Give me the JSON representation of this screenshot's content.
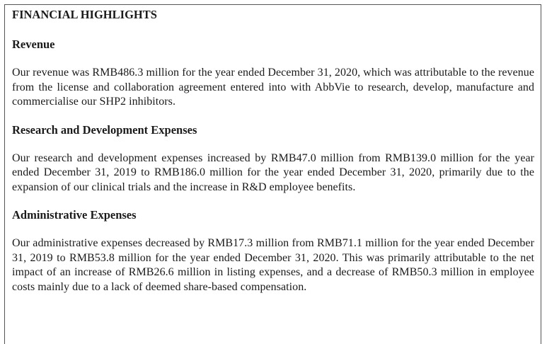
{
  "document": {
    "title": "FINANCIAL HIGHLIGHTS",
    "sections": [
      {
        "heading": "Revenue",
        "body": "Our revenue was RMB486.3 million for the year ended December 31, 2020, which was attributable to the revenue from the license and collaboration agreement entered into with AbbVie to research, develop, manufacture and commercialise our SHP2 inhibitors."
      },
      {
        "heading": "Research and Development Expenses",
        "body": "Our research and development expenses increased by RMB47.0 million from RMB139.0 million for the year ended December 31, 2019 to RMB186.0 million for the year ended December 31, 2020, primarily due to the expansion of our clinical trials and the increase in R&D employee benefits."
      },
      {
        "heading": "Administrative Expenses",
        "body": "Our administrative expenses decreased by RMB17.3 million from RMB71.1 million for the year ended December 31, 2019 to RMB53.8 million for the year ended December 31, 2020. This was primarily attributable to the net impact of an increase of RMB26.6 million in listing expenses, and a decrease of RMB50.3 million in employee costs mainly due to a lack of deemed share-based compensation."
      }
    ]
  }
}
